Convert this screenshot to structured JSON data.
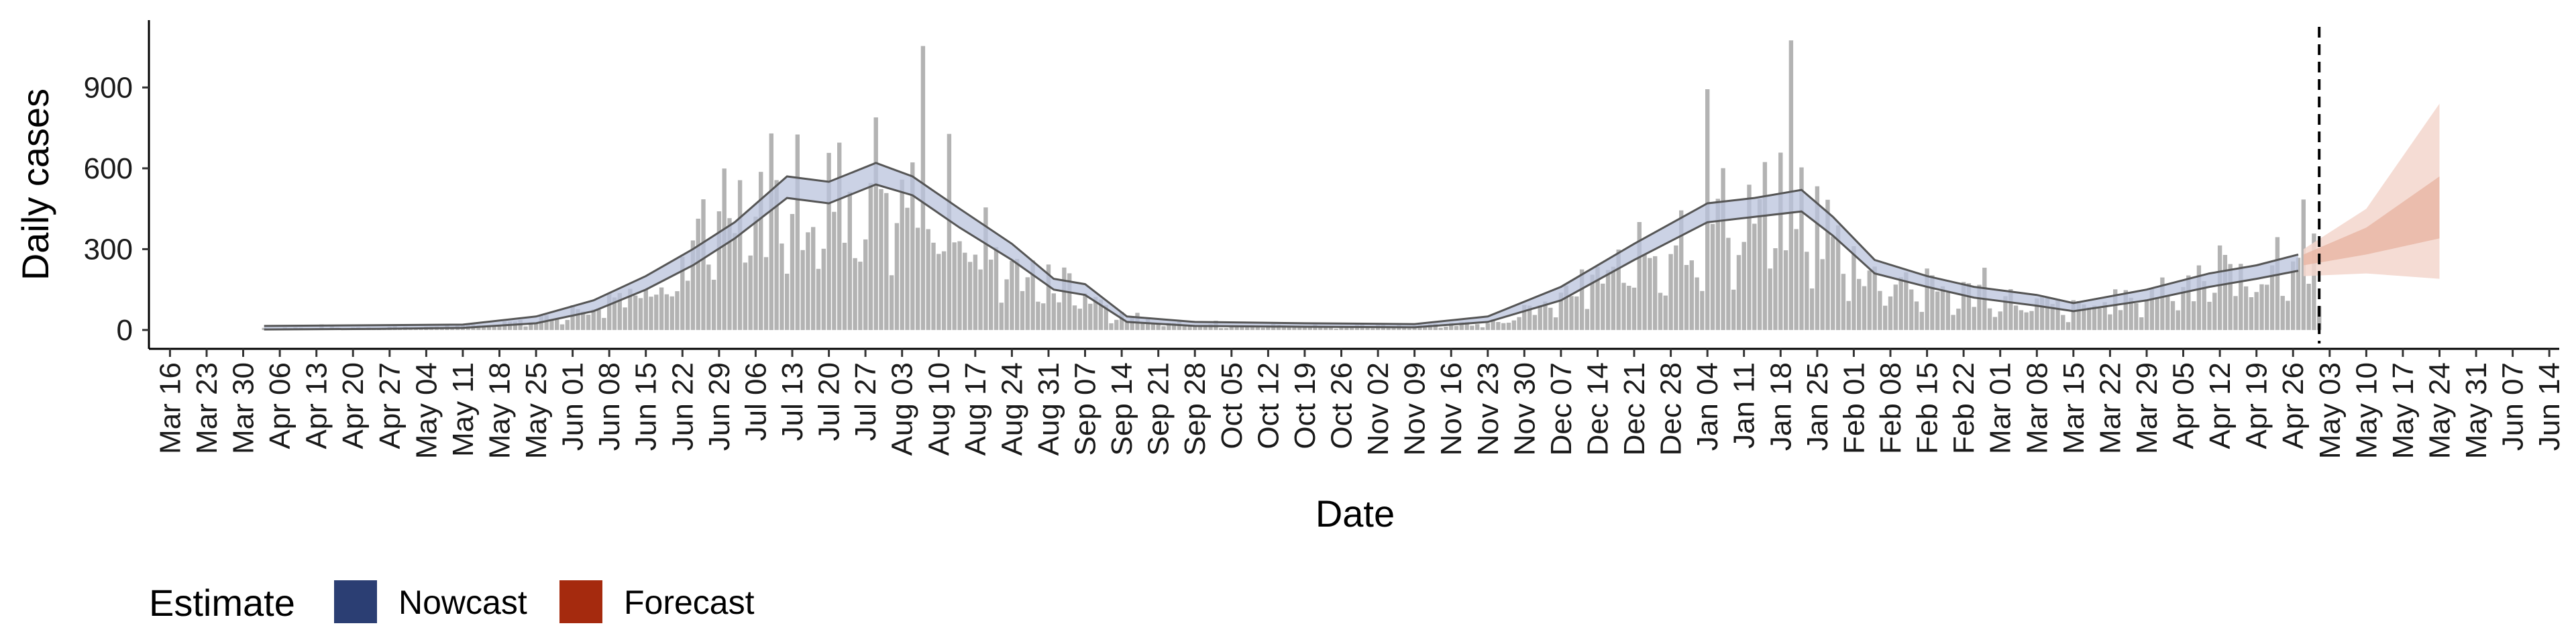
{
  "chart_data": {
    "type": "bar",
    "xlabel": "Date",
    "ylabel": "Daily cases",
    "ylim": [
      -50,
      1150
    ],
    "yticks": [
      0,
      300,
      600,
      900
    ],
    "xlim": [
      "2020-03-13",
      "2021-06-15"
    ],
    "xtick_labels": [
      "Mar 16",
      "Mar 23",
      "Mar 30",
      "Apr 06",
      "Apr 13",
      "Apr 20",
      "Apr 27",
      "May 04",
      "May 11",
      "May 18",
      "May 25",
      "Jun 01",
      "Jun 08",
      "Jun 15",
      "Jun 22",
      "Jun 29",
      "Jul 06",
      "Jul 13",
      "Jul 20",
      "Jul 27",
      "Aug 03",
      "Aug 10",
      "Aug 17",
      "Aug 24",
      "Aug 31",
      "Sep 07",
      "Sep 14",
      "Sep 21",
      "Sep 28",
      "Oct 05",
      "Oct 12",
      "Oct 19",
      "Oct 26",
      "Nov 02",
      "Nov 09",
      "Nov 16",
      "Nov 23",
      "Nov 30",
      "Dec 07",
      "Dec 14",
      "Dec 21",
      "Dec 28",
      "Jan 04",
      "Jan 11",
      "Jan 18",
      "Jan 25",
      "Feb 01",
      "Feb 08",
      "Feb 15",
      "Feb 22",
      "Mar 01",
      "Mar 08",
      "Mar 15",
      "Mar 22",
      "Mar 29",
      "Apr 05",
      "Apr 12",
      "Apr 19",
      "Apr 26",
      "May 03",
      "May 10",
      "May 17",
      "May 24",
      "May 31",
      "Jun 07",
      "Jun 14"
    ],
    "xtick_dates": [
      "2020-03-16",
      "2020-03-23",
      "2020-03-30",
      "2020-04-06",
      "2020-04-13",
      "2020-04-20",
      "2020-04-27",
      "2020-05-04",
      "2020-05-11",
      "2020-05-18",
      "2020-05-25",
      "2020-06-01",
      "2020-06-08",
      "2020-06-15",
      "2020-06-22",
      "2020-06-29",
      "2020-07-06",
      "2020-07-13",
      "2020-07-20",
      "2020-07-27",
      "2020-08-03",
      "2020-08-10",
      "2020-08-17",
      "2020-08-24",
      "2020-08-31",
      "2020-09-07",
      "2020-09-14",
      "2020-09-21",
      "2020-09-28",
      "2020-10-05",
      "2020-10-12",
      "2020-10-19",
      "2020-10-26",
      "2020-11-02",
      "2020-11-09",
      "2020-11-16",
      "2020-11-23",
      "2020-11-30",
      "2020-12-07",
      "2020-12-14",
      "2020-12-21",
      "2020-12-28",
      "2021-01-04",
      "2021-01-11",
      "2021-01-18",
      "2021-01-25",
      "2021-02-01",
      "2021-02-08",
      "2021-02-15",
      "2021-02-22",
      "2021-03-01",
      "2021-03-08",
      "2021-03-15",
      "2021-03-22",
      "2021-03-29",
      "2021-04-05",
      "2021-04-12",
      "2021-04-19",
      "2021-04-26",
      "2021-05-03",
      "2021-05-10",
      "2021-05-17",
      "2021-05-24",
      "2021-05-31",
      "2021-06-07",
      "2021-06-14"
    ],
    "forecast_start": "2021-05-01",
    "grid": false,
    "legend": {
      "title": "Estimate",
      "placement": "bottom-left",
      "entries": [
        {
          "label": "Nowcast",
          "color": "#2b3e73"
        },
        {
          "label": "Forecast",
          "color": "#a52a0e"
        }
      ]
    },
    "colors": {
      "bars": "#b3b3b3",
      "nowcast_band": "#b9c3dc",
      "forecast_band": "#f3d6cc",
      "forecast_band_inner": "#e9b7a6",
      "ci_lines": "#555555",
      "axis": "#000000"
    },
    "case_curve": [
      [
        "2020-04-03",
        8
      ],
      [
        "2020-04-20",
        10
      ],
      [
        "2020-05-10",
        14
      ],
      [
        "2020-05-25",
        40
      ],
      [
        "2020-06-01",
        70
      ],
      [
        "2020-06-10",
        140
      ],
      [
        "2020-06-20",
        240
      ],
      [
        "2020-06-28",
        340
      ],
      [
        "2020-07-06",
        420
      ],
      [
        "2020-07-12",
        520
      ],
      [
        "2020-07-18",
        500
      ],
      [
        "2020-07-24",
        520
      ],
      [
        "2020-07-29",
        580
      ],
      [
        "2020-08-03",
        540
      ],
      [
        "2020-08-10",
        450
      ],
      [
        "2020-08-17",
        350
      ],
      [
        "2020-08-24",
        250
      ],
      [
        "2020-08-31",
        180
      ],
      [
        "2020-09-05",
        160
      ],
      [
        "2020-09-14",
        60
      ],
      [
        "2020-09-21",
        25
      ],
      [
        "2020-10-10",
        18
      ],
      [
        "2020-11-01",
        15
      ],
      [
        "2020-11-16",
        20
      ],
      [
        "2020-11-26",
        40
      ],
      [
        "2020-12-07",
        120
      ],
      [
        "2020-12-15",
        200
      ],
      [
        "2020-12-24",
        300
      ],
      [
        "2021-01-02",
        420
      ],
      [
        "2021-01-10",
        450
      ],
      [
        "2021-01-18",
        460
      ],
      [
        "2021-01-22",
        480
      ],
      [
        "2021-01-26",
        400
      ],
      [
        "2021-02-01",
        270
      ],
      [
        "2021-02-08",
        190
      ],
      [
        "2021-02-15",
        160
      ],
      [
        "2021-02-22",
        140
      ],
      [
        "2021-03-01",
        120
      ],
      [
        "2021-03-08",
        100
      ],
      [
        "2021-03-15",
        80
      ],
      [
        "2021-03-22",
        100
      ],
      [
        "2021-03-29",
        140
      ],
      [
        "2021-04-05",
        180
      ],
      [
        "2021-04-12",
        200
      ],
      [
        "2021-04-19",
        220
      ],
      [
        "2021-04-26",
        260
      ],
      [
        "2021-05-01",
        280
      ]
    ],
    "nowcast_upper": [
      [
        "2020-04-03",
        15
      ],
      [
        "2020-04-25",
        18
      ],
      [
        "2020-05-11",
        20
      ],
      [
        "2020-05-25",
        50
      ],
      [
        "2020-06-05",
        110
      ],
      [
        "2020-06-15",
        200
      ],
      [
        "2020-06-24",
        300
      ],
      [
        "2020-07-02",
        400
      ],
      [
        "2020-07-12",
        570
      ],
      [
        "2020-07-20",
        550
      ],
      [
        "2020-07-29",
        620
      ],
      [
        "2020-08-05",
        570
      ],
      [
        "2020-08-14",
        450
      ],
      [
        "2020-08-24",
        320
      ],
      [
        "2020-09-01",
        190
      ],
      [
        "2020-09-07",
        170
      ],
      [
        "2020-09-15",
        50
      ],
      [
        "2020-09-28",
        30
      ],
      [
        "2020-10-19",
        25
      ],
      [
        "2020-11-09",
        22
      ],
      [
        "2020-11-23",
        50
      ],
      [
        "2020-12-07",
        160
      ],
      [
        "2020-12-21",
        320
      ],
      [
        "2021-01-04",
        470
      ],
      [
        "2021-01-13",
        490
      ],
      [
        "2021-01-22",
        520
      ],
      [
        "2021-01-28",
        420
      ],
      [
        "2021-02-05",
        260
      ],
      [
        "2021-02-15",
        200
      ],
      [
        "2021-02-24",
        160
      ],
      [
        "2021-03-08",
        130
      ],
      [
        "2021-03-15",
        100
      ],
      [
        "2021-03-29",
        150
      ],
      [
        "2021-04-10",
        210
      ],
      [
        "2021-04-19",
        240
      ],
      [
        "2021-04-27",
        280
      ]
    ],
    "nowcast_lower": [
      [
        "2020-04-03",
        2
      ],
      [
        "2020-04-25",
        4
      ],
      [
        "2020-05-11",
        8
      ],
      [
        "2020-05-25",
        25
      ],
      [
        "2020-06-05",
        70
      ],
      [
        "2020-06-15",
        150
      ],
      [
        "2020-06-24",
        240
      ],
      [
        "2020-07-02",
        340
      ],
      [
        "2020-07-12",
        490
      ],
      [
        "2020-07-20",
        470
      ],
      [
        "2020-07-29",
        540
      ],
      [
        "2020-08-05",
        500
      ],
      [
        "2020-08-14",
        380
      ],
      [
        "2020-08-24",
        260
      ],
      [
        "2020-09-01",
        150
      ],
      [
        "2020-09-07",
        130
      ],
      [
        "2020-09-15",
        30
      ],
      [
        "2020-09-28",
        15
      ],
      [
        "2020-10-19",
        12
      ],
      [
        "2020-11-09",
        10
      ],
      [
        "2020-11-23",
        30
      ],
      [
        "2020-12-07",
        110
      ],
      [
        "2020-12-21",
        260
      ],
      [
        "2021-01-04",
        400
      ],
      [
        "2021-01-13",
        420
      ],
      [
        "2021-01-22",
        440
      ],
      [
        "2021-01-28",
        350
      ],
      [
        "2021-02-05",
        210
      ],
      [
        "2021-02-15",
        160
      ],
      [
        "2021-02-24",
        120
      ],
      [
        "2021-03-08",
        90
      ],
      [
        "2021-03-15",
        70
      ],
      [
        "2021-03-29",
        110
      ],
      [
        "2021-04-10",
        160
      ],
      [
        "2021-04-19",
        190
      ],
      [
        "2021-04-27",
        220
      ]
    ],
    "forecast_outer_upper": [
      [
        "2021-04-28",
        300
      ],
      [
        "2021-05-10",
        450
      ],
      [
        "2021-05-24",
        840
      ]
    ],
    "forecast_outer_lower": [
      [
        "2021-04-28",
        200
      ],
      [
        "2021-05-10",
        210
      ],
      [
        "2021-05-24",
        190
      ]
    ],
    "forecast_inner_upper": [
      [
        "2021-04-28",
        280
      ],
      [
        "2021-05-10",
        380
      ],
      [
        "2021-05-24",
        570
      ]
    ],
    "forecast_inner_lower": [
      [
        "2021-04-28",
        240
      ],
      [
        "2021-05-10",
        280
      ],
      [
        "2021-05-24",
        340
      ]
    ]
  }
}
